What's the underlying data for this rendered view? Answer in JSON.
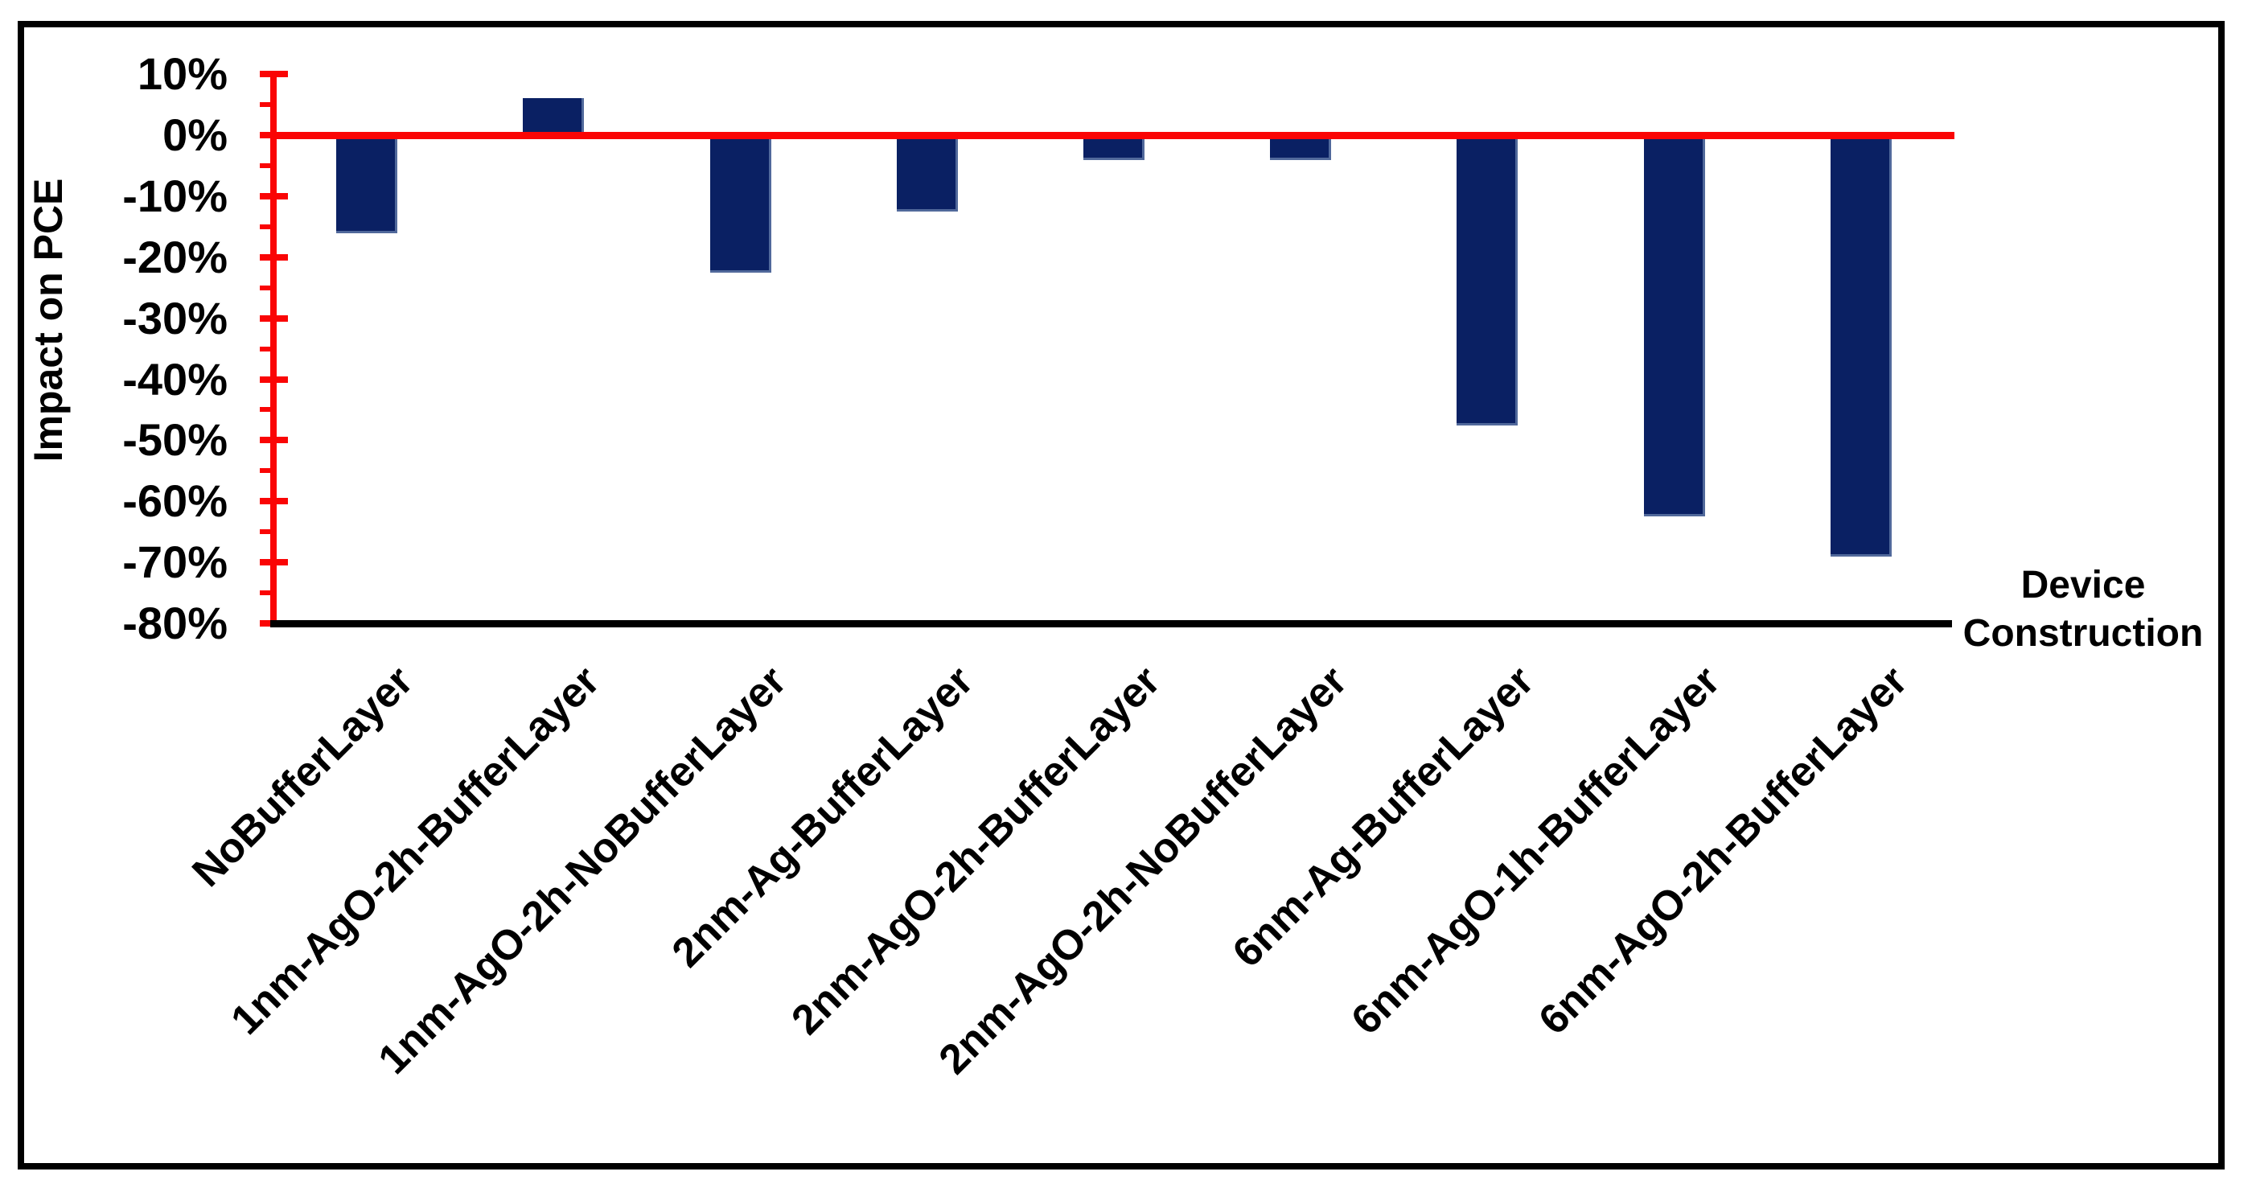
{
  "figure": {
    "background": "#ffffff",
    "frame_color": "#000000"
  },
  "chart_data": {
    "type": "bar",
    "title": "",
    "ylabel": "Impact on PCE",
    "xlabel": "Device Construction",
    "categories": [
      "NoBufferLayer",
      "1nm-AgO-2h-BufferLayer",
      "1nm-AgO-2h-NoBufferLayer",
      "2nm-Ag-BufferLayer",
      "2nm-AgO-2h-BufferLayer",
      "2nm-AgO-2h-NoBufferLayer",
      "6nm-Ag-BufferLayer",
      "6nm-AgO-1h-BufferLayer",
      "6nm-AgO-2h-BufferLayer"
    ],
    "values": [
      -15.5,
      6,
      -22,
      -12,
      -3.5,
      -3.5,
      -47,
      -62,
      -68.5
    ],
    "value_unit": "%",
    "ylim": [
      -80,
      10
    ],
    "yticks": [
      10,
      0,
      -10,
      -20,
      -30,
      -40,
      -50,
      -60,
      -70,
      -80
    ],
    "ytick_labels": [
      "10%",
      "0%",
      "-10%",
      "-20%",
      "-30%",
      "-40%",
      "-50%",
      "-60%",
      "-70%",
      "-80%"
    ],
    "minor_yticks": [
      5,
      -5,
      -15,
      -25,
      -35,
      -45,
      -55,
      -65,
      -75
    ],
    "grid": false,
    "legend": null,
    "colors": {
      "bar_fill": "#0a2063",
      "bar_edge": "#51699b",
      "y_axis": "#fa0505",
      "zero_line": "#fa0505",
      "x_axis": "#000000",
      "text": "#000000"
    }
  }
}
